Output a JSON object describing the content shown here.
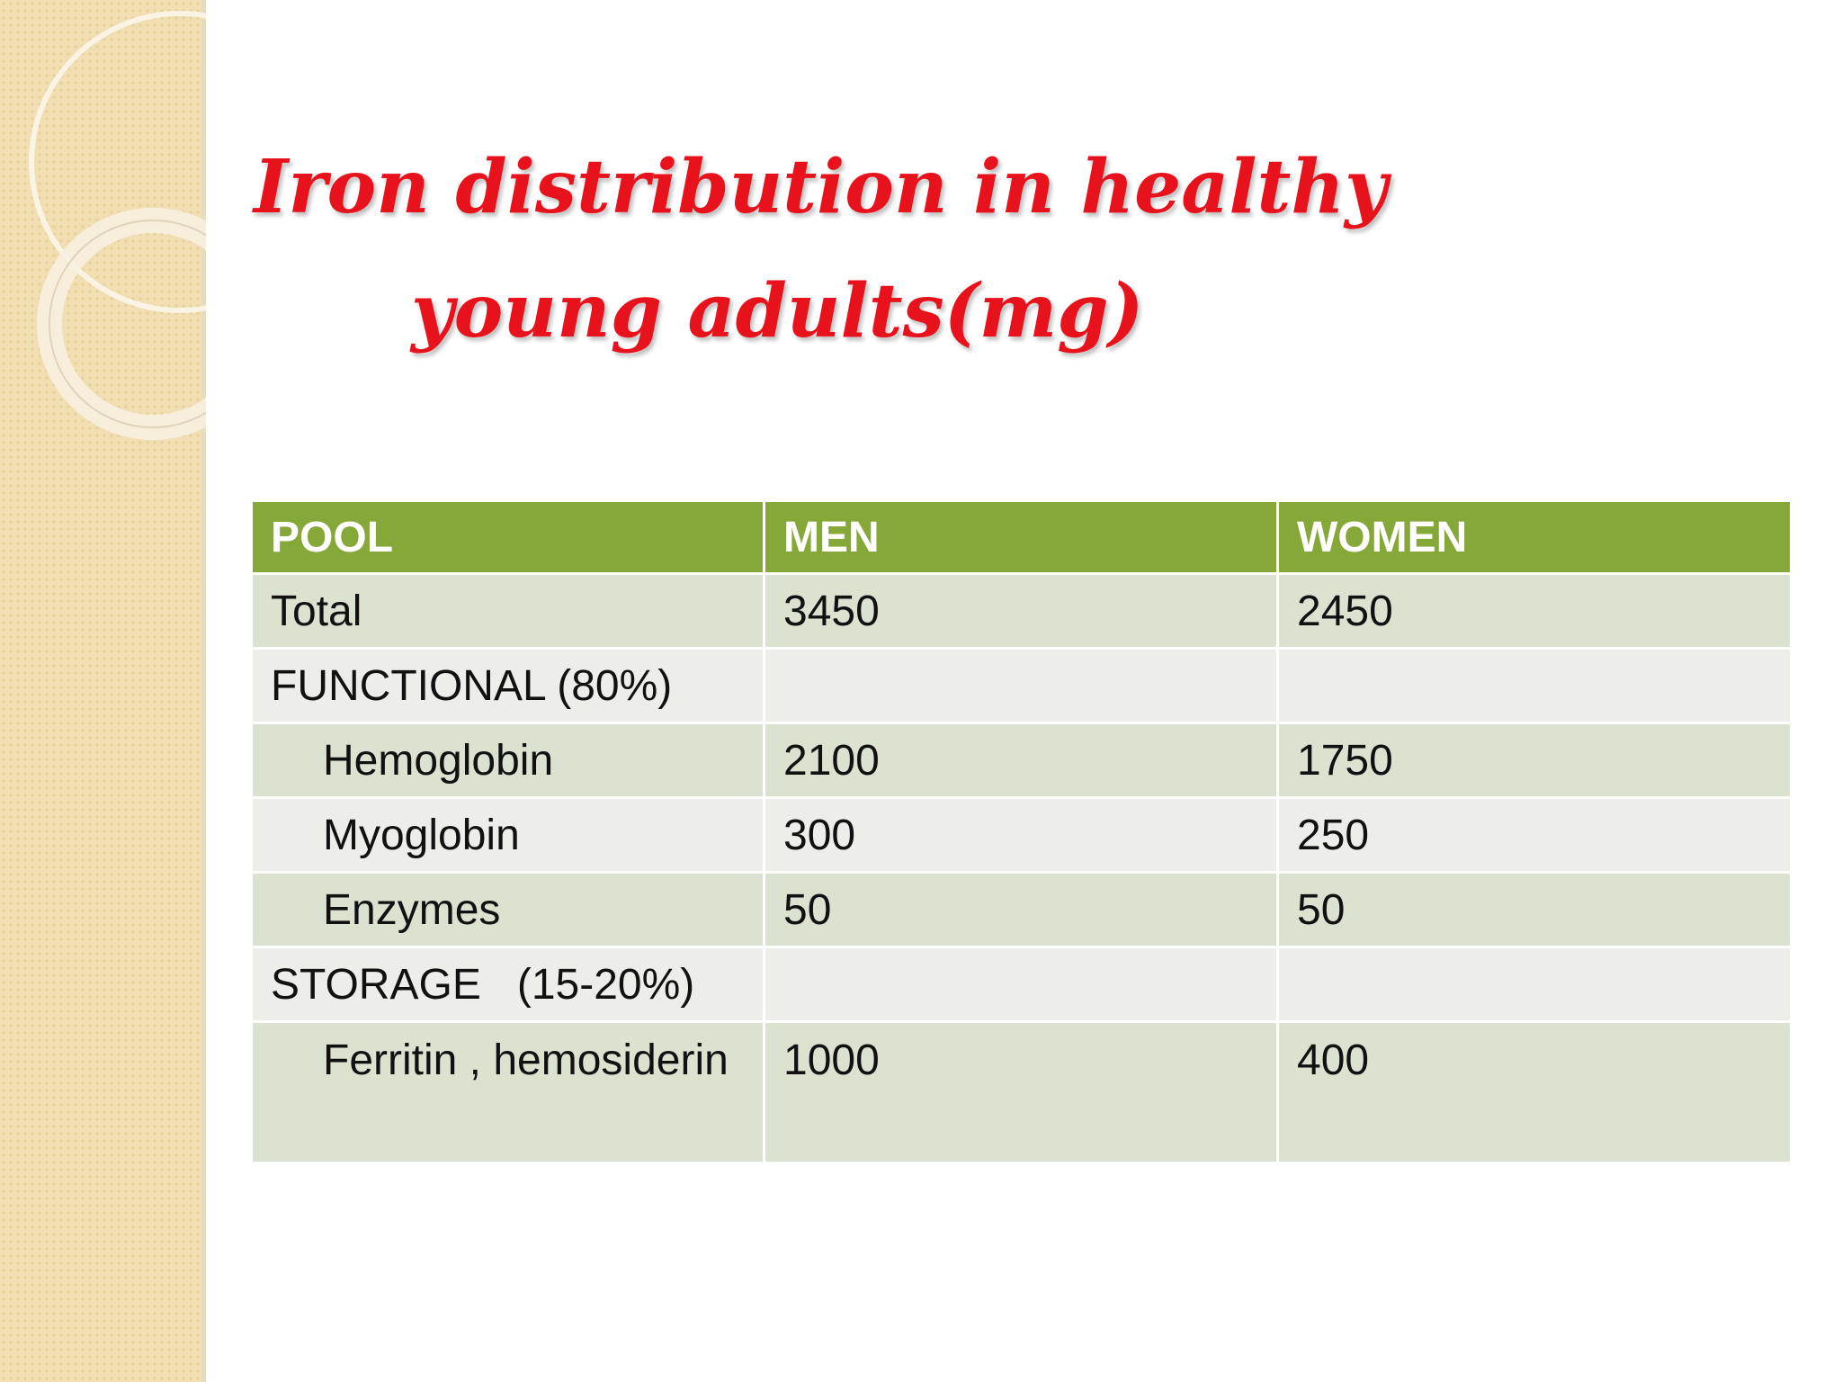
{
  "slide": {
    "title_lines": [
      "Iron distribution in healthy",
      "young adults(mg)"
    ],
    "table": {
      "header": [
        "POOL",
        "MEN",
        "WOMEN"
      ],
      "rows": [
        [
          "Total",
          "3450",
          "2450"
        ],
        [
          "FUNCTIONAL (80%)",
          null,
          null
        ],
        [
          "Hemoglobin",
          "2100",
          "1750"
        ],
        [
          "Myoglobin",
          "300",
          "250"
        ],
        [
          "Enzymes",
          "50",
          "50"
        ],
        [
          "STORAGE   (15-20%)",
          null,
          null
        ],
        [
          "Ferritin , hemosiderin",
          "1000",
          "400"
        ]
      ]
    }
  }
}
